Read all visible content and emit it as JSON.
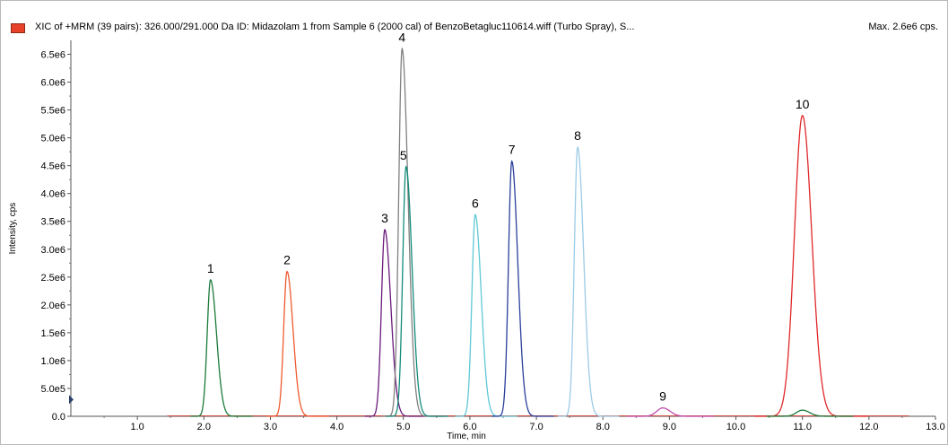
{
  "header": {
    "title": "XIC of +MRM (39 pairs): 326.000/291.000 Da ID: Midazolam 1 from Sample 6 (2000 cal) of BenzoBetagluc110614.wiff (Turbo Spray), S...",
    "max_label": "Max. 2.6e6 cps."
  },
  "colors": {
    "legend_swatch": "#e8412a"
  },
  "chart_data": {
    "type": "line",
    "title": "",
    "xlabel": "Time, min",
    "ylabel": "Intensity, cps",
    "xlim": [
      0.0,
      13.0
    ],
    "ylim": [
      0.0,
      6750000.0
    ],
    "x_ticks": [
      1.0,
      2.0,
      3.0,
      4.0,
      5.0,
      6.0,
      7.0,
      8.0,
      9.0,
      10.0,
      11.0,
      12.0,
      13.0
    ],
    "x_tick_labels": [
      "1.0",
      "2.0",
      "3.0",
      "4.0",
      "5.0",
      "6.0",
      "7.0",
      "8.0",
      "9.0",
      "10.0",
      "11.0",
      "12.0",
      "13.0"
    ],
    "y_ticks": [
      0,
      500000,
      1000000,
      1500000,
      2000000,
      2500000,
      3000000,
      3500000,
      4000000,
      4500000,
      5000000,
      5500000,
      6000000,
      6500000
    ],
    "y_tick_labels": [
      "0.0",
      "5.0e5",
      "1.0e6",
      "1.5e6",
      "2.0e6",
      "2.5e6",
      "3.0e6",
      "3.5e6",
      "4.0e6",
      "4.5e6",
      "5.0e6",
      "5.5e6",
      "6.0e6",
      "6.5e6"
    ],
    "grid": false,
    "series": [
      {
        "label": "1",
        "color": "#1b7a3a",
        "peak_time": 2.1,
        "peak_intensity": 2450000
      },
      {
        "label": "2",
        "color": "#ef5a30",
        "peak_time": 3.25,
        "peak_intensity": 2600000
      },
      {
        "label": "3",
        "color": "#6a1a7a",
        "peak_time": 4.72,
        "peak_intensity": 3350000
      },
      {
        "label": "4",
        "color": "#808080",
        "peak_time": 4.98,
        "peak_intensity": 6600000
      },
      {
        "label": "5",
        "color": "#128a7a",
        "peak_time": 5.04,
        "peak_intensity": 4480000
      },
      {
        "label": "6",
        "color": "#5fc8d6",
        "peak_time": 6.08,
        "peak_intensity": 3620000
      },
      {
        "label": "7",
        "color": "#2a3f9a",
        "peak_time": 6.63,
        "peak_intensity": 4580000
      },
      {
        "label": "8",
        "color": "#9ccbe6",
        "peak_time": 7.62,
        "peak_intensity": 4830000
      },
      {
        "label": "9",
        "color": "#c04aa8",
        "peak_time": 8.9,
        "peak_intensity": 150000
      },
      {
        "label": "10",
        "color": "#e0282a",
        "peak_time": 11.0,
        "peak_intensity": 5400000
      },
      {
        "label": "",
        "color": "#1b7a3a",
        "peak_time": 11.0,
        "peak_intensity": 110000
      }
    ]
  }
}
